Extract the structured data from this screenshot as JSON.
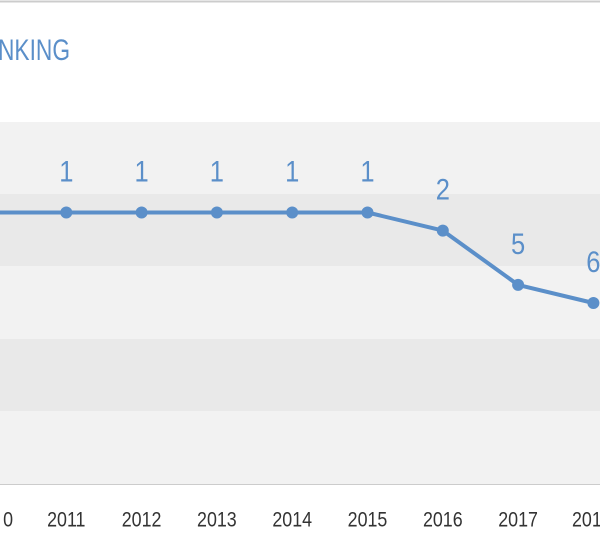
{
  "chart_data": {
    "type": "line",
    "title": "NKING",
    "categories": [
      "0",
      "2011",
      "2012",
      "2013",
      "2014",
      "2015",
      "2016",
      "2017",
      "201"
    ],
    "values": [
      1,
      1,
      1,
      1,
      1,
      1,
      2,
      5,
      6
    ],
    "color": "#5b8fc9",
    "ylim": [
      16,
      -4
    ]
  }
}
